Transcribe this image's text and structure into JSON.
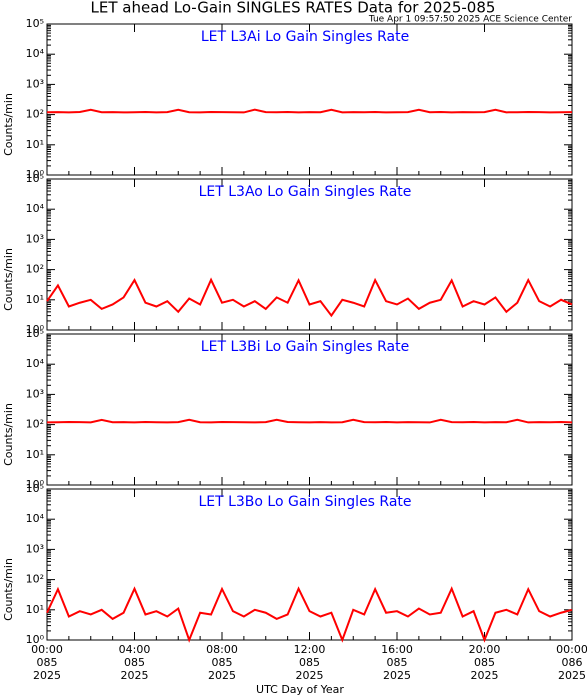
{
  "chart_data": {
    "type": "line",
    "title": "LET ahead Lo-Gain SINGLES RATES Data for 2025-085",
    "timestamp": "Tue Apr  1 09:57:50 2025 ACE Science Center",
    "xlabel": "UTC Day of Year",
    "ylabel": "Counts/min",
    "log": true,
    "x": [
      0,
      0.5,
      1,
      1.5,
      2,
      2.5,
      3,
      3.5,
      4,
      4.5,
      5,
      5.5,
      6,
      6.5,
      7,
      7.5,
      8,
      8.5,
      9,
      9.5,
      10,
      10.5,
      11,
      11.5,
      12,
      12.5,
      13,
      13.5,
      14,
      14.5,
      15,
      15.5,
      16,
      16.5,
      17,
      17.5,
      18,
      18.5,
      19,
      19.5,
      20,
      20.5,
      21,
      21.5,
      22,
      22.5,
      23,
      23.5,
      24
    ],
    "xlim": [
      0,
      24
    ],
    "xticks": [
      {
        "value": 0,
        "label": [
          "00:00",
          "085",
          "2025"
        ]
      },
      {
        "value": 4,
        "label": [
          "04:00",
          "085",
          "2025"
        ]
      },
      {
        "value": 8,
        "label": [
          "08:00",
          "085",
          "2025"
        ]
      },
      {
        "value": 12,
        "label": [
          "12:00",
          "085",
          "2025"
        ]
      },
      {
        "value": 16,
        "label": [
          "16:00",
          "085",
          "2025"
        ]
      },
      {
        "value": 20,
        "label": [
          "20:00",
          "085",
          "2025"
        ]
      },
      {
        "value": 24,
        "label": [
          "00:00",
          "086",
          "2025"
        ]
      }
    ],
    "ylim": [
      1,
      100000
    ],
    "yticks": [
      {
        "value": 1,
        "label": "10⁰"
      },
      {
        "value": 10,
        "label": "10¹"
      },
      {
        "value": 100,
        "label": "10²"
      },
      {
        "value": 1000,
        "label": "10³"
      },
      {
        "value": 10000,
        "label": "10⁴"
      },
      {
        "value": 100000,
        "label": "10⁵"
      }
    ],
    "panels": [
      {
        "title": "LET L3Ai Lo Gain Singles Rate",
        "color": "#ff0000",
        "values": [
          120,
          121,
          119,
          122,
          145,
          120,
          121,
          118,
          120,
          122,
          119,
          121,
          145,
          120,
          119,
          122,
          121,
          120,
          118,
          146,
          121,
          120,
          122,
          119,
          121,
          120,
          145,
          119,
          121,
          120,
          122,
          118,
          120,
          121,
          144,
          120,
          122,
          119,
          121,
          120,
          121,
          145,
          119,
          120,
          122,
          121,
          118,
          120,
          121
        ]
      },
      {
        "title": "LET L3Ao Lo Gain Singles Rate",
        "color": "#ff0000",
        "values": [
          9,
          30,
          6,
          8,
          10,
          5,
          7,
          12,
          45,
          8,
          6,
          9,
          4,
          11,
          7,
          46,
          8,
          10,
          6,
          9,
          5,
          12,
          8,
          44,
          7,
          9,
          3,
          10,
          8,
          6,
          45,
          9,
          7,
          11,
          5,
          8,
          10,
          44,
          6,
          9,
          7,
          12,
          4,
          8,
          45,
          9,
          6,
          10,
          7
        ]
      },
      {
        "title": "LET L3Bi Lo Gain Singles Rate",
        "color": "#ff0000",
        "values": [
          118,
          120,
          122,
          121,
          119,
          143,
          120,
          121,
          118,
          122,
          120,
          119,
          121,
          145,
          120,
          118,
          122,
          121,
          120,
          119,
          121,
          144,
          122,
          120,
          119,
          121,
          118,
          120,
          145,
          121,
          120,
          122,
          119,
          121,
          120,
          118,
          144,
          121,
          120,
          122,
          119,
          121,
          120,
          145,
          118,
          121,
          120,
          122,
          119
        ]
      },
      {
        "title": "LET L3Bo Lo Gain Singles Rate",
        "color": "#ff0000",
        "values": [
          8,
          48,
          6,
          9,
          7,
          10,
          5,
          8,
          50,
          7,
          9,
          6,
          11,
          1,
          8,
          7,
          49,
          9,
          6,
          10,
          8,
          5,
          7,
          50,
          9,
          6,
          8,
          1,
          10,
          7,
          48,
          8,
          9,
          6,
          11,
          7,
          8,
          50,
          6,
          9,
          1,
          8,
          10,
          7,
          48,
          9,
          6,
          8,
          10
        ]
      }
    ]
  }
}
